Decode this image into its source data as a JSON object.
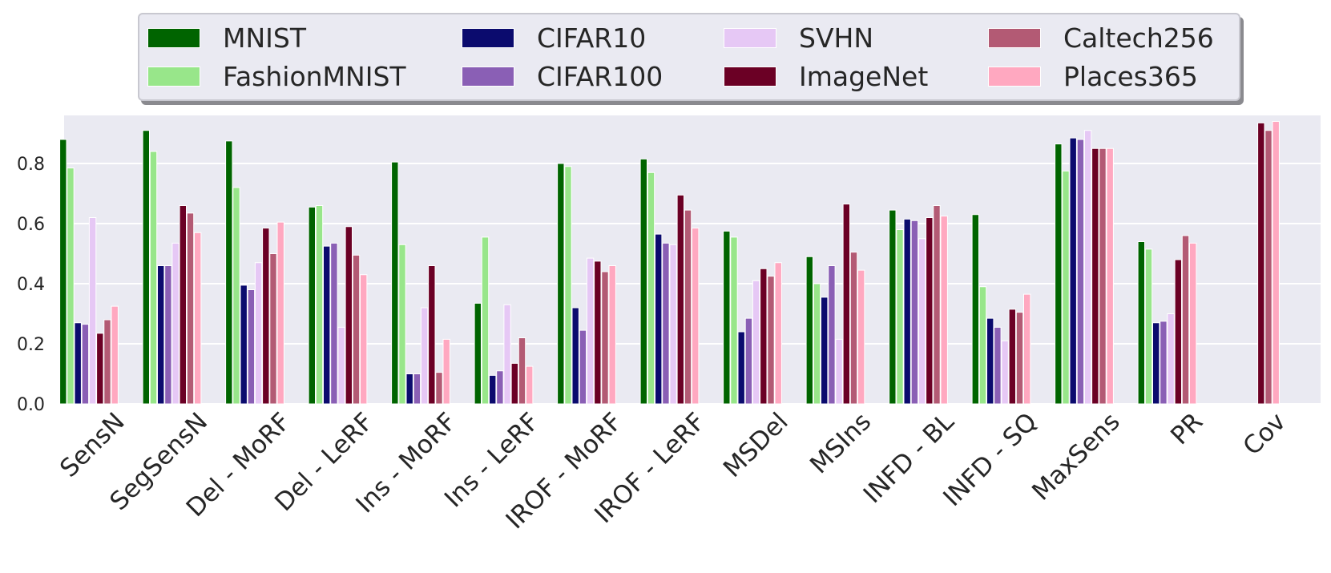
{
  "chart_data": {
    "type": "bar",
    "title": "",
    "xlabel": "",
    "ylabel": "",
    "ylim": [
      0,
      0.96
    ],
    "yticks": [
      "0.0",
      "0.2",
      "0.4",
      "0.6",
      "0.8"
    ],
    "grid": true,
    "legend_position": "top",
    "categories": [
      "SensN",
      "SegSensN",
      "Del - MoRF",
      "Del - LeRF",
      "Ins - MoRF",
      "Ins - LeRF",
      "IROF - MoRF",
      "IROF - LeRF",
      "MSDel",
      "MSIns",
      "INFD - BL",
      "INFD - SQ",
      "MaxSens",
      "PR",
      "Cov"
    ],
    "series": [
      {
        "name": "MNIST",
        "color": "#006400",
        "values": [
          0.88,
          0.91,
          0.875,
          0.655,
          0.805,
          0.335,
          0.8,
          0.815,
          0.575,
          0.49,
          0.645,
          0.63,
          0.865,
          0.54,
          null
        ]
      },
      {
        "name": "FashionMNIST",
        "color": "#98e68a",
        "values": [
          0.785,
          0.84,
          0.72,
          0.66,
          0.53,
          0.555,
          0.79,
          0.77,
          0.555,
          0.4,
          0.58,
          0.39,
          0.775,
          0.515,
          null
        ]
      },
      {
        "name": "CIFAR10",
        "color": "#0b0b6e",
        "values": [
          0.27,
          0.46,
          0.395,
          0.525,
          0.1,
          0.095,
          0.32,
          0.565,
          0.24,
          0.355,
          0.615,
          0.285,
          0.885,
          0.27,
          null
        ]
      },
      {
        "name": "CIFAR100",
        "color": "#8a5fb5",
        "values": [
          0.265,
          0.46,
          0.38,
          0.535,
          0.1,
          0.11,
          0.245,
          0.535,
          0.285,
          0.46,
          0.61,
          0.255,
          0.88,
          0.275,
          null
        ]
      },
      {
        "name": "SVHN",
        "color": "#e6c8f5",
        "values": [
          0.62,
          0.535,
          0.47,
          0.255,
          0.32,
          0.33,
          0.485,
          0.53,
          0.41,
          0.215,
          0.55,
          0.21,
          0.91,
          0.3,
          null
        ]
      },
      {
        "name": "ImageNet",
        "color": "#6b0025",
        "values": [
          0.235,
          0.66,
          0.585,
          0.59,
          0.46,
          0.135,
          0.475,
          0.695,
          0.45,
          0.665,
          0.62,
          0.315,
          0.85,
          0.48,
          0.935
        ]
      },
      {
        "name": "Caltech256",
        "color": "#b35a74",
        "values": [
          0.28,
          0.635,
          0.5,
          0.495,
          0.105,
          0.22,
          0.44,
          0.645,
          0.425,
          0.505,
          0.66,
          0.305,
          0.85,
          0.56,
          0.91
        ]
      },
      {
        "name": "Places365",
        "color": "#ffa8c0",
        "values": [
          0.325,
          0.57,
          0.605,
          0.43,
          0.215,
          0.125,
          0.46,
          0.585,
          0.47,
          0.445,
          0.625,
          0.365,
          0.85,
          0.535,
          0.94
        ]
      }
    ]
  }
}
